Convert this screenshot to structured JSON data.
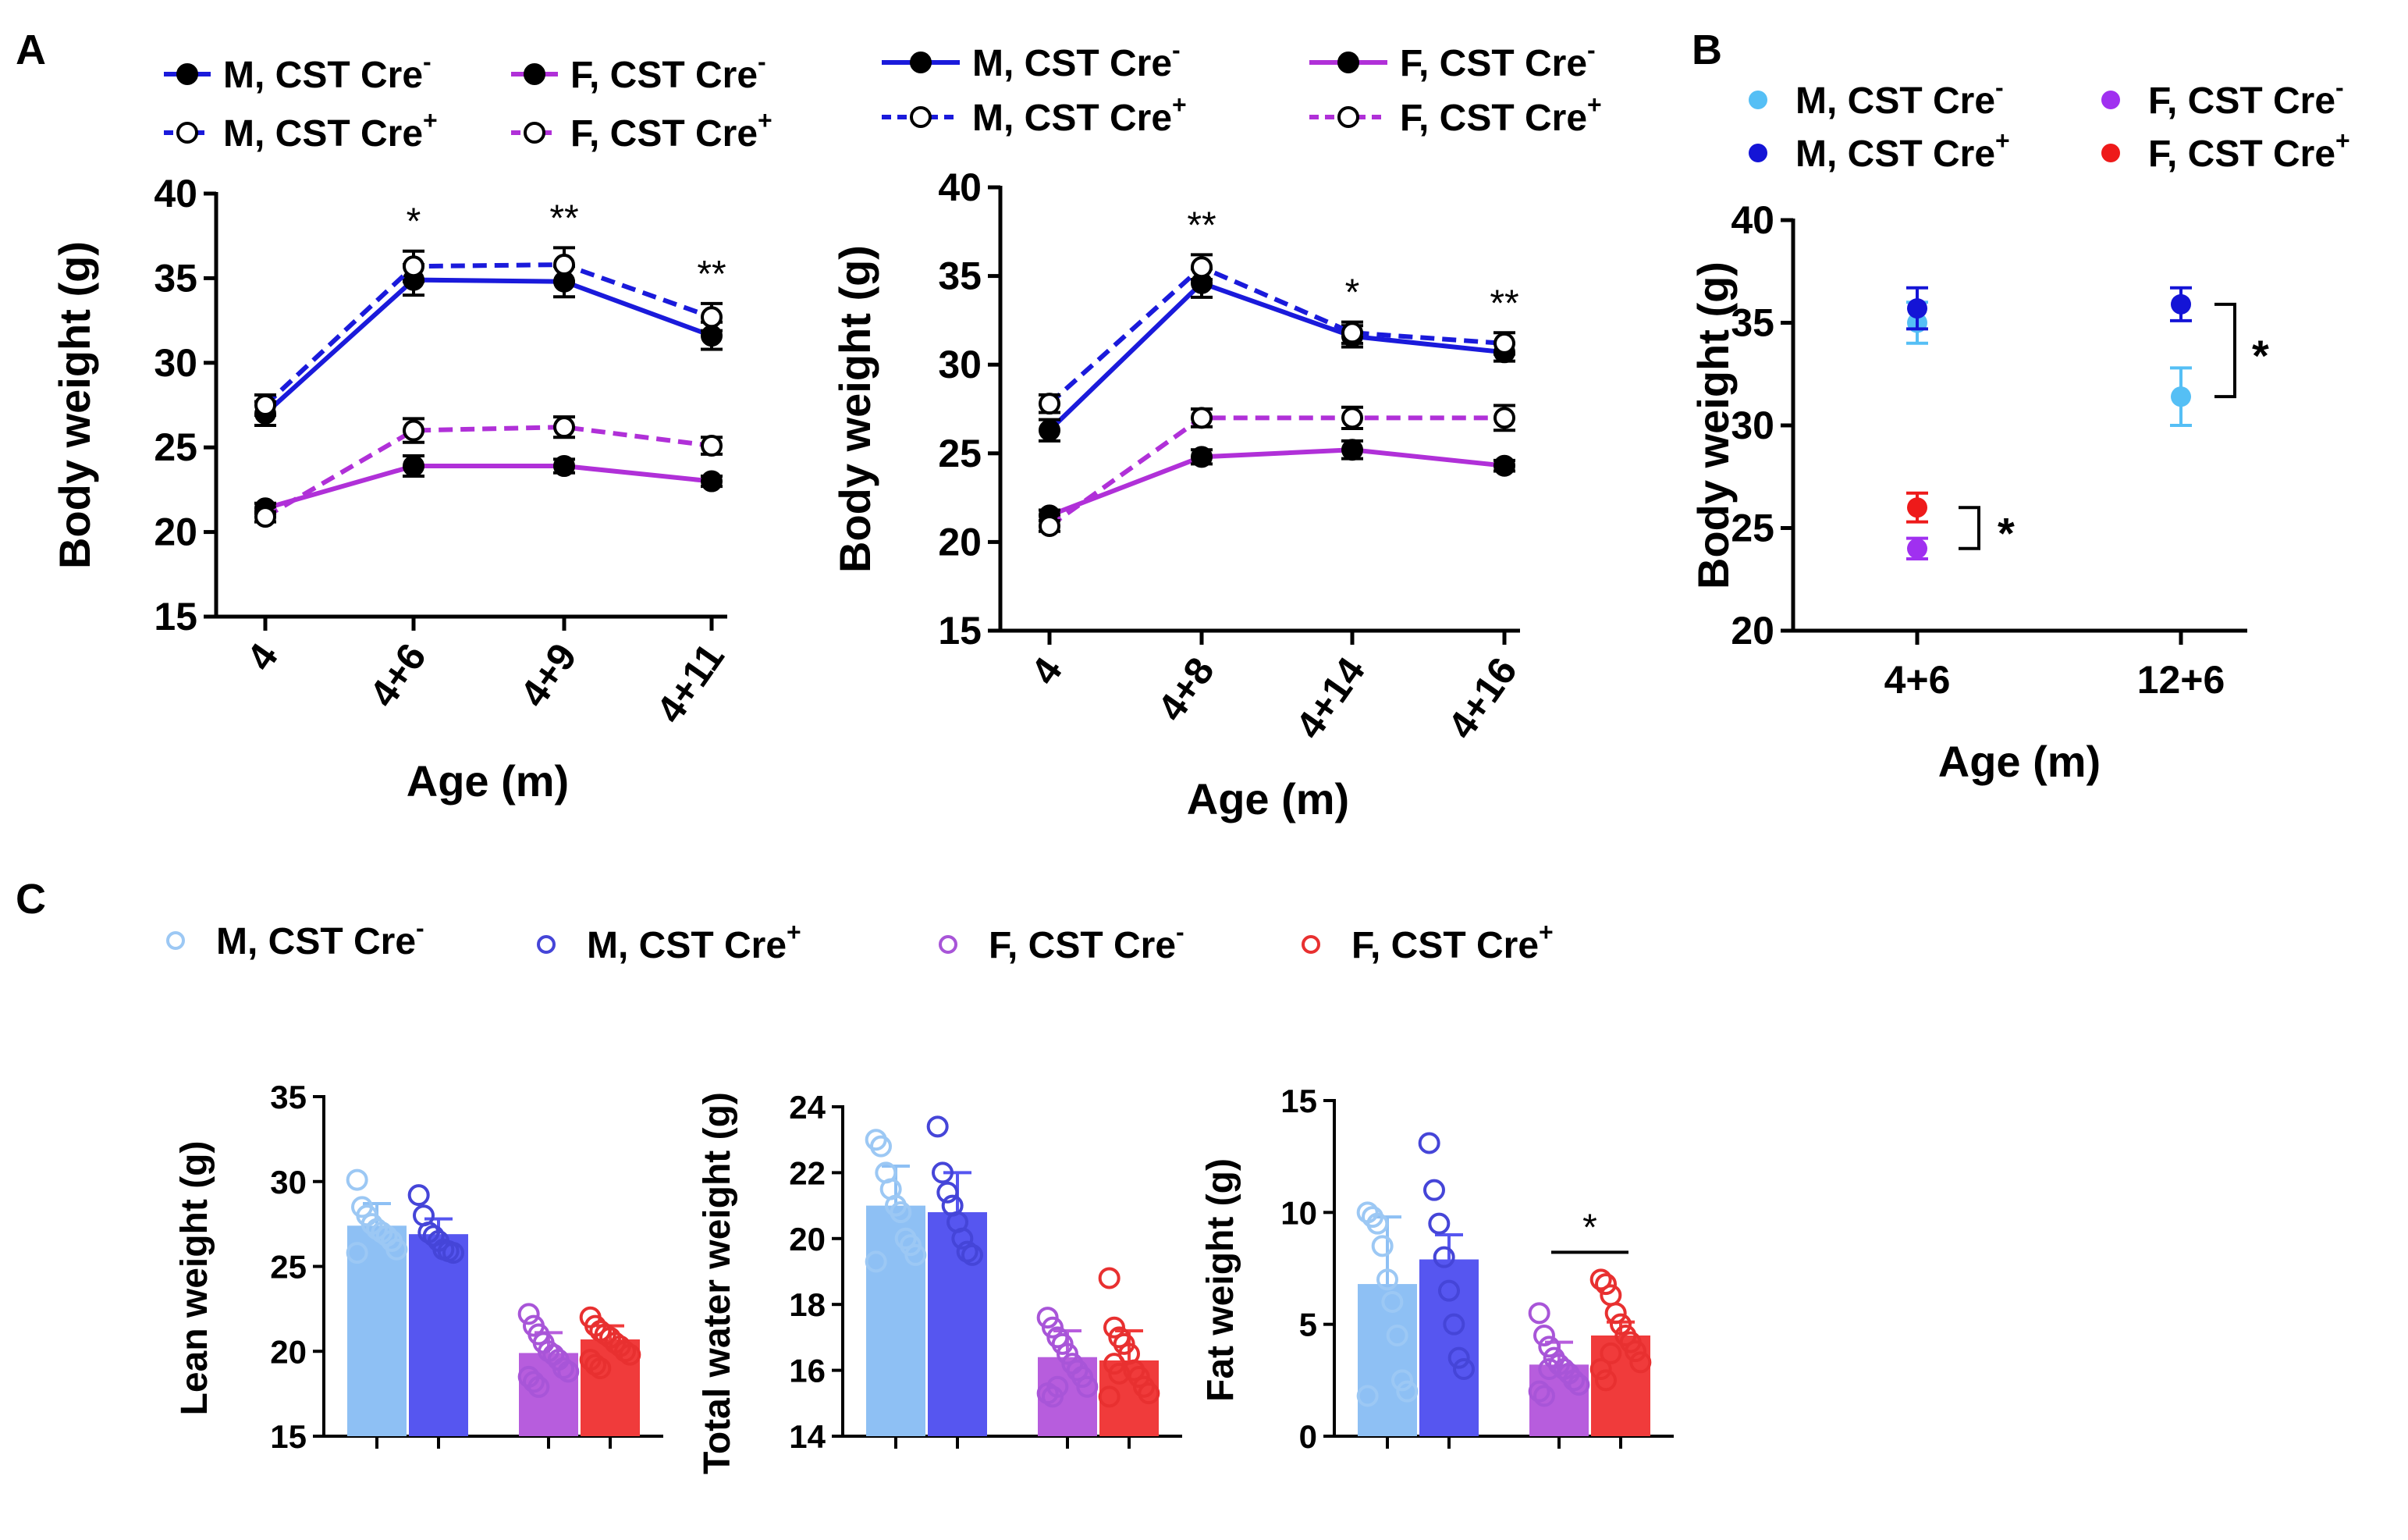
{
  "panel_labels": [
    "A",
    "B",
    "C"
  ],
  "colors": {
    "male_line": "#1a1adb",
    "female_line": "#b030d8",
    "B_m_neg": "#55bff5",
    "B_m_pos": "#1414d6",
    "B_f_neg": "#a030f0",
    "B_f_pos": "#ee1a1a",
    "C_m_neg_fill": "#8ec0f4",
    "C_m_neg_pt": "#9cc8f4",
    "C_m_pos_fill": "#5656f0",
    "C_m_pos_pt": "#4545d8",
    "C_f_neg_fill": "#b75ddd",
    "C_f_neg_pt": "#a855d8",
    "C_f_pos_fill": "#f03b3b",
    "C_f_pos_pt": "#e83030"
  },
  "legend_A1": [
    {
      "base": "M, CST Cre",
      "sup": "-",
      "style": "solid-filled"
    },
    {
      "base": "F, CST Cre",
      "sup": "-",
      "style": "solid-filled"
    },
    {
      "base": "M, CST Cre",
      "sup": "+",
      "style": "dashed-open"
    },
    {
      "base": "F, CST Cre",
      "sup": "+",
      "style": "dashed-open"
    }
  ],
  "legend_A2": [
    {
      "base": "M, CST Cre",
      "sup": "-",
      "style": "solid-filled"
    },
    {
      "base": "F, CST Cre",
      "sup": "-",
      "style": "solid-filled"
    },
    {
      "base": "M, CST Cre",
      "sup": "+",
      "style": "dashed-open"
    },
    {
      "base": "F, CST Cre",
      "sup": "+",
      "style": "dashed-open"
    }
  ],
  "legend_B": [
    {
      "base": "M, CST Cre",
      "sup": "-"
    },
    {
      "base": "F, CST Cre",
      "sup": "-"
    },
    {
      "base": "M, CST Cre",
      "sup": "+"
    },
    {
      "base": "F, CST Cre",
      "sup": "+"
    }
  ],
  "legend_C": [
    {
      "base": "M, CST Cre",
      "sup": "-"
    },
    {
      "base": "M, CST Cre",
      "sup": "+"
    },
    {
      "base": "F, CST Cre",
      "sup": "-"
    },
    {
      "base": "F, CST Cre",
      "sup": "+"
    }
  ],
  "chart_data": [
    {
      "id": "A1",
      "type": "line",
      "xlabel": "Age (m)",
      "ylabel": "Body weight (g)",
      "categories": [
        "4",
        "4+6",
        "4+9",
        "4+11"
      ],
      "ylim": [
        15,
        40
      ],
      "yticks": [
        "15",
        "20",
        "25",
        "30",
        "35",
        "40"
      ],
      "series": [
        {
          "name": "M, CST Cre-",
          "values": [
            27.0,
            34.9,
            34.8,
            31.6
          ],
          "err": [
            0.7,
            0.9,
            0.9,
            0.8
          ]
        },
        {
          "name": "M, CST Cre+",
          "values": [
            27.5,
            35.7,
            35.8,
            32.7
          ],
          "err": [
            0.6,
            0.9,
            1.0,
            0.8
          ]
        },
        {
          "name": "F, CST Cre-",
          "values": [
            21.4,
            23.9,
            23.9,
            23.0
          ],
          "err": [
            0.3,
            0.6,
            0.4,
            0.3
          ]
        },
        {
          "name": "F, CST Cre+",
          "values": [
            20.9,
            26.0,
            26.2,
            25.1
          ],
          "err": [
            0.3,
            0.7,
            0.6,
            0.5
          ]
        }
      ],
      "significance": [
        {
          "category": "4+6",
          "label": "*"
        },
        {
          "category": "4+9",
          "label": "**"
        },
        {
          "category": "4+11",
          "label": "**"
        }
      ]
    },
    {
      "id": "A2",
      "type": "line",
      "xlabel": "Age (m)",
      "ylabel": "Body weight (g)",
      "categories": [
        "4",
        "4+8",
        "4+14",
        "4+16"
      ],
      "ylim": [
        15,
        40
      ],
      "yticks": [
        "15",
        "20",
        "25",
        "30",
        "35",
        "40"
      ],
      "series": [
        {
          "name": "M, CST Cre-",
          "values": [
            26.3,
            34.6,
            31.6,
            30.7
          ],
          "err": [
            0.6,
            0.8,
            0.6,
            0.5
          ]
        },
        {
          "name": "M, CST Cre+",
          "values": [
            27.8,
            35.5,
            31.8,
            31.2
          ],
          "err": [
            0.5,
            0.7,
            0.6,
            0.6
          ]
        },
        {
          "name": "F, CST Cre-",
          "values": [
            21.5,
            24.8,
            25.2,
            24.3
          ],
          "err": [
            0.3,
            0.4,
            0.5,
            0.3
          ]
        },
        {
          "name": "F, CST Cre+",
          "values": [
            20.9,
            27.0,
            27.0,
            27.0
          ],
          "err": [
            0.3,
            0.5,
            0.6,
            0.7
          ]
        }
      ],
      "significance": [
        {
          "category": "4+8",
          "label": "**"
        },
        {
          "category": "4+14",
          "label": "*"
        },
        {
          "category": "4+16",
          "label": "**"
        }
      ]
    },
    {
      "id": "B",
      "type": "scatter",
      "xlabel": "Age (m)",
      "ylabel": "Body weight (g)",
      "categories": [
        "4+6",
        "12+6"
      ],
      "ylim": [
        20,
        40
      ],
      "yticks": [
        "20",
        "25",
        "30",
        "35",
        "40"
      ],
      "series": [
        {
          "name": "M, CST Cre-",
          "values": [
            35.0,
            31.4
          ],
          "err": [
            1.0,
            1.4
          ]
        },
        {
          "name": "M, CST Cre+",
          "values": [
            35.7,
            35.9
          ],
          "err": [
            1.0,
            0.8
          ]
        },
        {
          "name": "F, CST Cre-",
          "values": [
            24.0,
            null
          ],
          "err": [
            0.5,
            null
          ]
        },
        {
          "name": "F, CST Cre+",
          "values": [
            26.0,
            null
          ],
          "err": [
            0.7,
            null
          ]
        }
      ],
      "significance": [
        {
          "category": "4+6",
          "label": "*"
        },
        {
          "category": "12+6",
          "label": "*"
        }
      ]
    },
    {
      "id": "C1",
      "type": "bar",
      "ylabel": "Lean weight (g)",
      "categories": [
        "M, CST Cre-",
        "M, CST Cre+",
        "F, CST Cre-",
        "F, CST Cre+"
      ],
      "ylim": [
        15,
        35
      ],
      "yticks": [
        "15",
        "20",
        "25",
        "30",
        "35"
      ],
      "means": [
        27.4,
        26.9,
        19.9,
        20.7
      ],
      "err": [
        1.3,
        0.9,
        1.2,
        0.8
      ],
      "points": [
        [
          30.1,
          28.5,
          28.0,
          27.5,
          27.2,
          27.0,
          26.8,
          26.5,
          26.0,
          25.8
        ],
        [
          29.2,
          28.0,
          27.0,
          26.8,
          26.5,
          26.0,
          25.9,
          25.8
        ],
        [
          22.2,
          21.5,
          21.0,
          20.5,
          20.0,
          19.8,
          19.5,
          19.0,
          18.8,
          18.5,
          18.2,
          17.9
        ],
        [
          22.0,
          21.5,
          21.2,
          21.0,
          20.8,
          20.5,
          20.3,
          20.0,
          19.8,
          19.5,
          19.2,
          19.0
        ]
      ]
    },
    {
      "id": "C2",
      "type": "bar",
      "ylabel": "Total water weight (g)",
      "categories": [
        "M, CST Cre-",
        "M, CST Cre+",
        "F, CST Cre-",
        "F, CST Cre+"
      ],
      "ylim": [
        14,
        24
      ],
      "yticks": [
        "14",
        "16",
        "18",
        "20",
        "22",
        "24"
      ],
      "means": [
        21.0,
        20.8,
        16.4,
        16.3
      ],
      "err": [
        1.2,
        1.2,
        0.8,
        0.9
      ],
      "points": [
        [
          23.0,
          22.8,
          22.0,
          21.5,
          21.0,
          20.8,
          20.0,
          19.8,
          19.5,
          19.3
        ],
        [
          23.4,
          22.0,
          21.4,
          21.0,
          20.5,
          20.0,
          19.6,
          19.5
        ],
        [
          17.6,
          17.3,
          17.0,
          16.8,
          16.5,
          16.2,
          16.0,
          15.8,
          15.5,
          15.3,
          15.2,
          15.5
        ],
        [
          18.8,
          17.3,
          17.0,
          16.8,
          16.5,
          16.0,
          15.8,
          15.5,
          15.3,
          15.2,
          16.2,
          15.9
        ]
      ]
    },
    {
      "id": "C3",
      "type": "bar",
      "ylabel": "Fat weight (g)",
      "categories": [
        "M, CST Cre-",
        "M, CST Cre+",
        "F, CST Cre-",
        "F, CST Cre+"
      ],
      "ylim": [
        0,
        15
      ],
      "yticks": [
        "0",
        "5",
        "10",
        "15"
      ],
      "means": [
        6.8,
        7.9,
        3.2,
        4.5
      ],
      "err": [
        3.0,
        1.1,
        1.0,
        0.6
      ],
      "points": [
        [
          10.0,
          9.8,
          9.5,
          8.5,
          7.0,
          6.0,
          4.5,
          2.5,
          2.0,
          1.8
        ],
        [
          13.1,
          11.0,
          9.5,
          8.0,
          6.5,
          5.0,
          3.5,
          3.0
        ],
        [
          5.5,
          4.5,
          4.0,
          3.5,
          3.2,
          3.0,
          2.8,
          2.5,
          2.3,
          2.0,
          1.8,
          3.0
        ],
        [
          7.0,
          6.8,
          6.3,
          5.5,
          5.0,
          4.5,
          4.2,
          3.8,
          3.3,
          3.0,
          2.5,
          3.7
        ]
      ],
      "significance": [
        {
          "between": [
            "F, CST Cre-",
            "F, CST Cre+"
          ],
          "label": "*"
        }
      ]
    }
  ]
}
